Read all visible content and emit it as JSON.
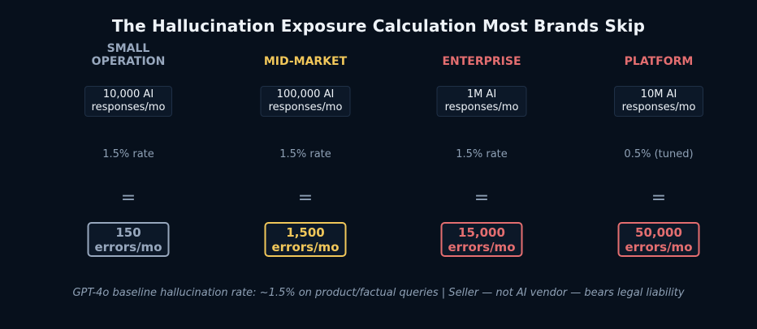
{
  "title": "The Hallucination Exposure Calculation Most Brands Skip",
  "columns": [
    {
      "label": "SMALL\nOPERATION",
      "volume": "10,000 AI\nresponses/mo",
      "rate": "1.5% rate",
      "equals": "=",
      "errors": "150\nerrors/mo",
      "color": "#97a7bd"
    },
    {
      "label": "MID-MARKET",
      "volume": "100,000 AI\nresponses/mo",
      "rate": "1.5% rate",
      "equals": "=",
      "errors": "1,500\nerrors/mo",
      "color": "#f1c75a"
    },
    {
      "label": "ENTERPRISE",
      "volume": "1M AI\nresponses/mo",
      "rate": "1.5% rate",
      "equals": "=",
      "errors": "15,000\nerrors/mo",
      "color": "#e46e70"
    },
    {
      "label": "PLATFORM",
      "volume": "10M AI\nresponses/mo",
      "rate": "0.5% (tuned)",
      "equals": "=",
      "errors": "50,000\nerrors/mo",
      "color": "#e46e70"
    }
  ],
  "footnote": "GPT-4o baseline hallucination rate: ~1.5% on product/factual queries  |  Seller — not AI vendor — bears legal liability"
}
